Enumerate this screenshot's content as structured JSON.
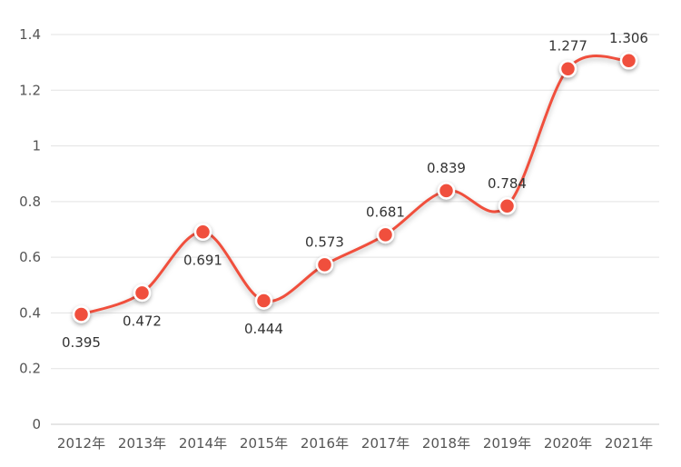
{
  "chart_data": {
    "type": "line",
    "smooth": true,
    "categories": [
      "2012年",
      "2013年",
      "2014年",
      "2015年",
      "2016年",
      "2017年",
      "2018年",
      "2019年",
      "2020年",
      "2021年"
    ],
    "series": [
      {
        "values": [
          0.395,
          0.472,
          0.691,
          0.444,
          0.573,
          0.681,
          0.839,
          0.784,
          1.277,
          1.306
        ],
        "labels": [
          "0.395",
          "0.472",
          "0.691",
          "0.444",
          "0.573",
          "0.681",
          "0.839",
          "0.784",
          "1.277",
          "1.306"
        ],
        "label_position": [
          "below",
          "below",
          "below",
          "below",
          "above",
          "above",
          "above",
          "above",
          "above",
          "above"
        ],
        "color": "#f0503c"
      }
    ],
    "ylim": [
      0,
      1.4
    ],
    "yticks": [
      0,
      0.2,
      0.4,
      0.6,
      0.8,
      1,
      1.2,
      1.4
    ],
    "ytick_labels": [
      "0",
      "0.2",
      "0.4",
      "0.6",
      "0.8",
      "1",
      "1.2",
      "1.4"
    ],
    "grid": true,
    "legend": "none"
  }
}
